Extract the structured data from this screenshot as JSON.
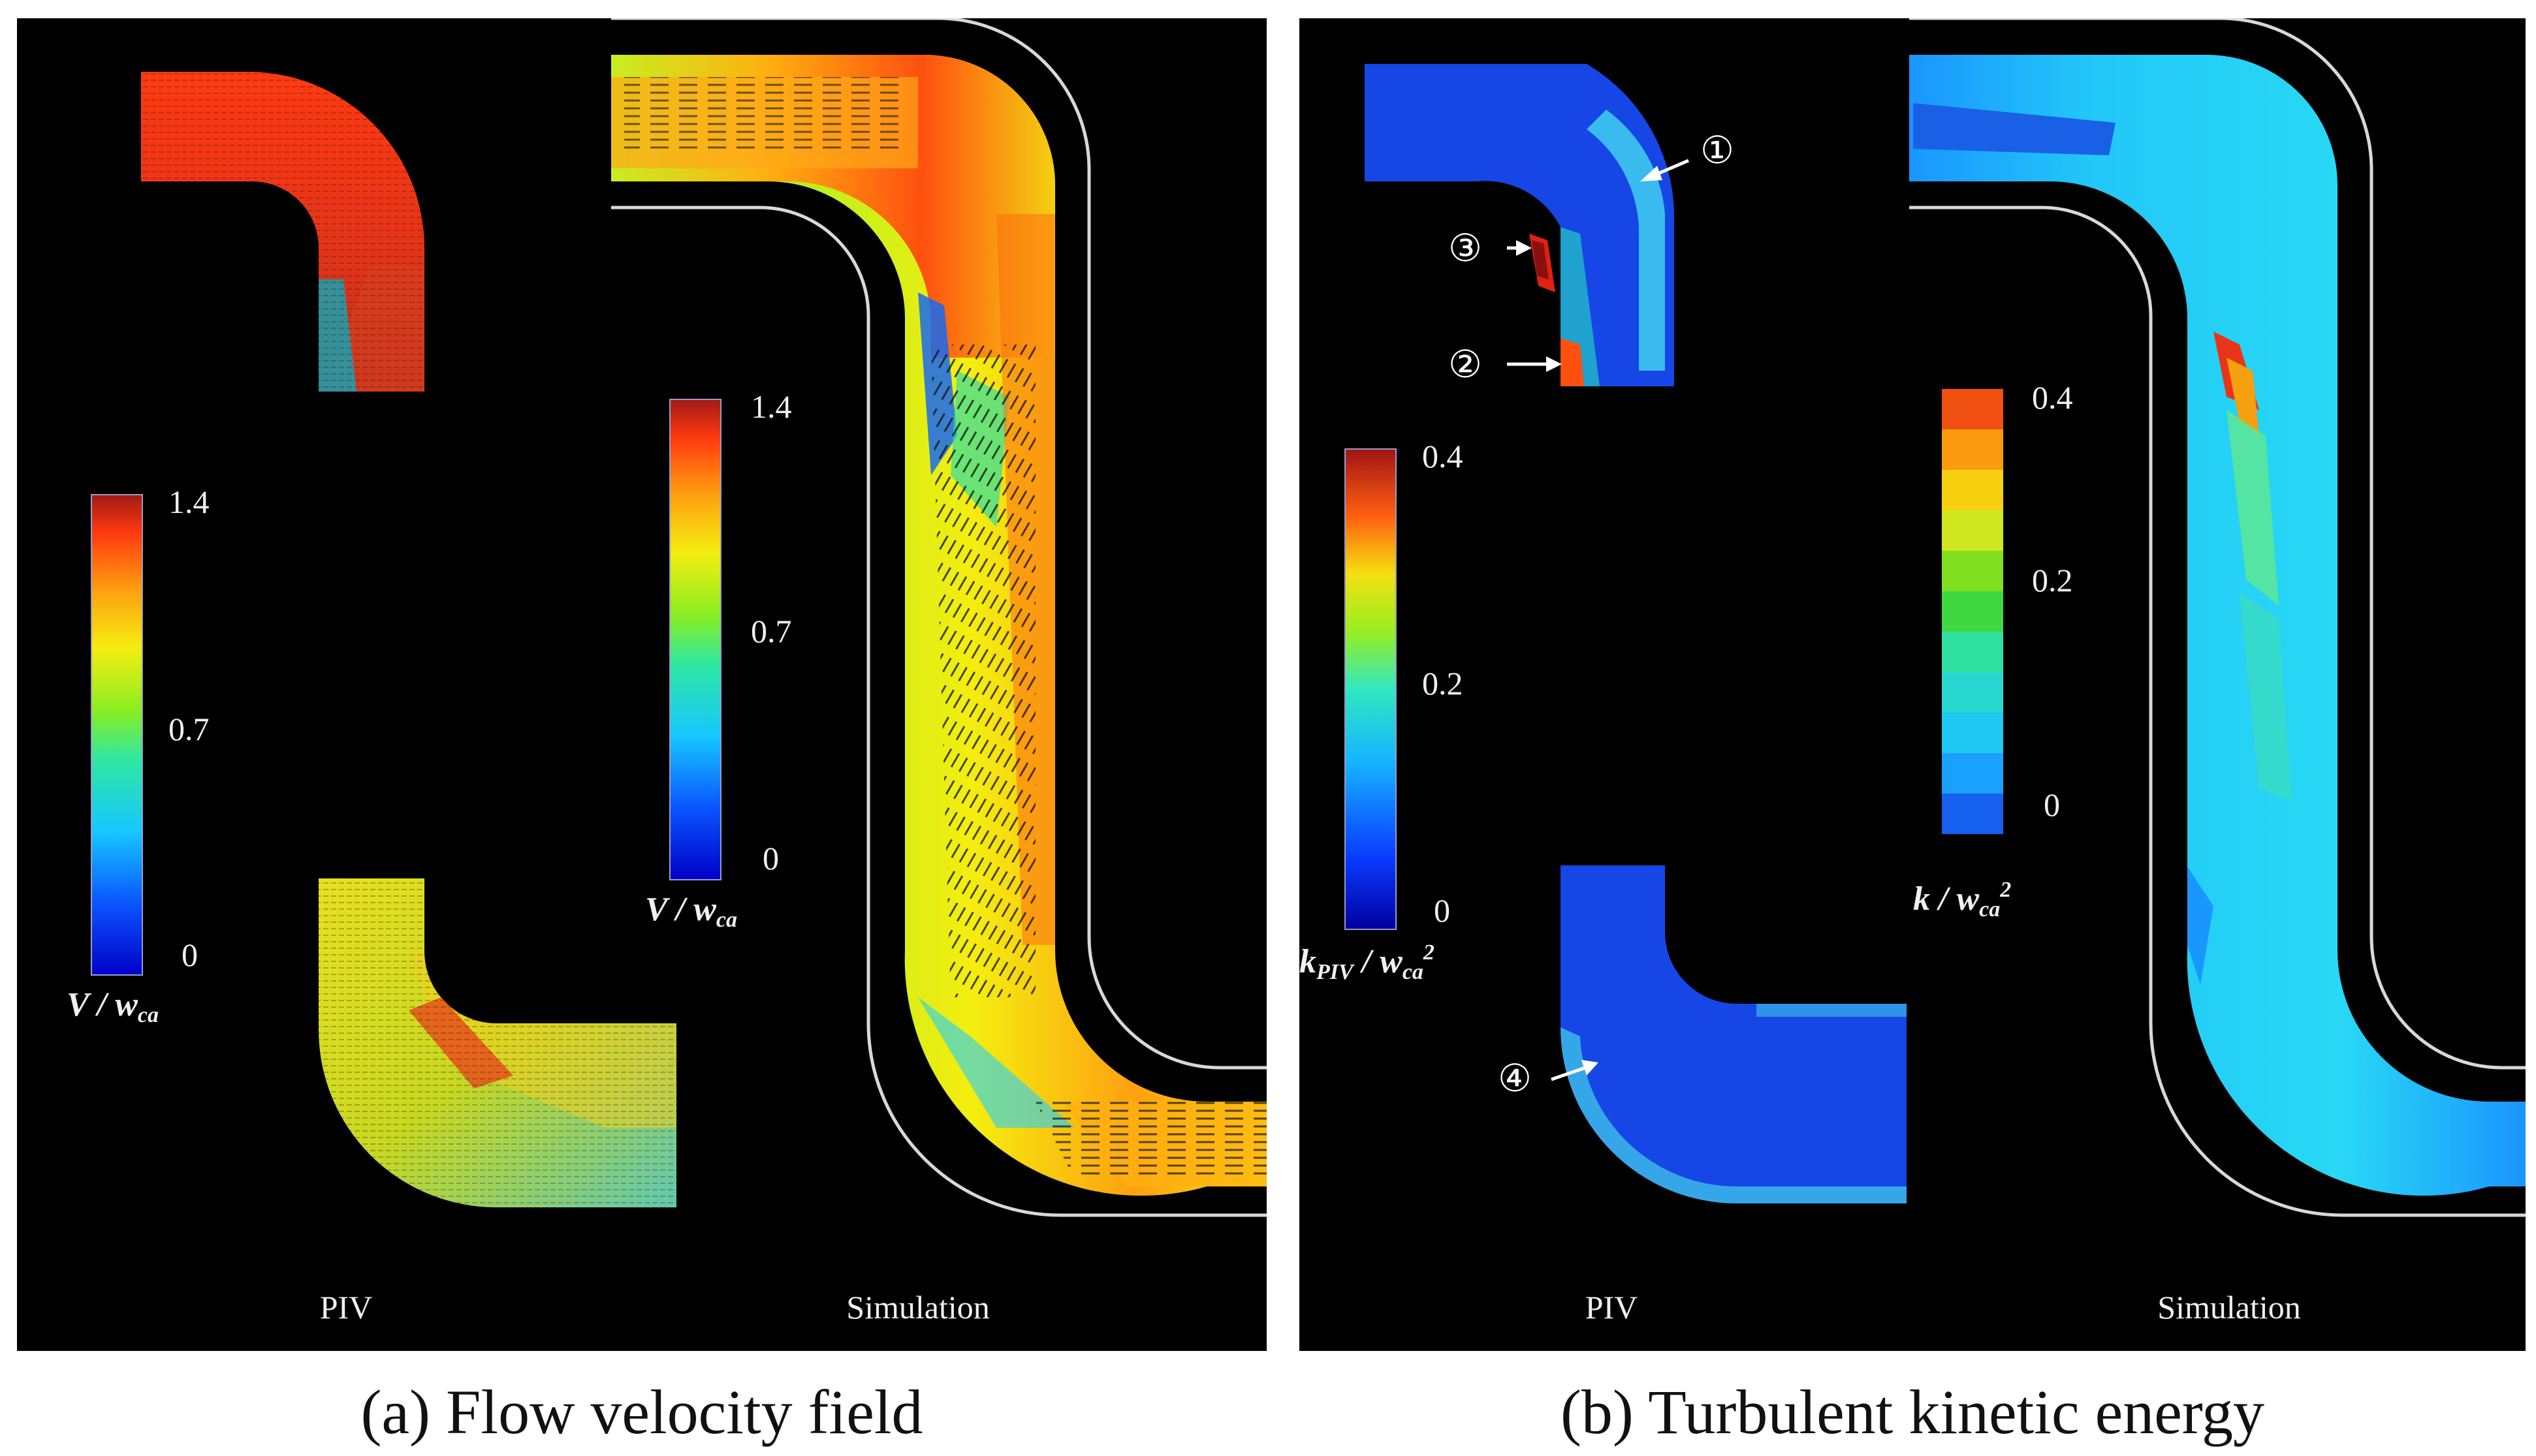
{
  "panel_a": {
    "caption": "(a) Flow velocity field",
    "piv_label": "PIV",
    "sim_label": "Simulation",
    "scale_piv": {
      "max": "1.4",
      "mid": "0.7",
      "min": "0",
      "var": "V",
      "den": "w",
      "den_sub": "ca"
    },
    "scale_sim": {
      "max": "1.4",
      "mid": "0.7",
      "min": "0",
      "var": "V",
      "den": "w",
      "den_sub": "ca"
    }
  },
  "panel_b": {
    "caption": "(b) Turbulent kinetic energy",
    "piv_label": "PIV",
    "sim_label": "Simulation",
    "scale_piv": {
      "max": "0.4",
      "mid": "0.2",
      "min": "0",
      "var": "k",
      "var_sub": "PIV",
      "den": "w",
      "den_sub": "ca",
      "den_sup": "2"
    },
    "scale_sim": {
      "max": "0.4",
      "mid": "0.2",
      "min": "0",
      "var": "k",
      "den": "w",
      "den_sub": "ca",
      "den_sup": "2"
    },
    "markers": [
      "①",
      "②",
      "③",
      "④"
    ]
  },
  "colors": {
    "background": "#000000",
    "jet": [
      "#0000c8",
      "#0a55ff",
      "#16c8ff",
      "#2fe8a0",
      "#88ee22",
      "#f4ee10",
      "#ffa010",
      "#ff3a10",
      "#a01a14"
    ],
    "tke_low": "#1646e6",
    "tke_mid": "#1aa0ff",
    "tke_high": "#22e8f4"
  }
}
